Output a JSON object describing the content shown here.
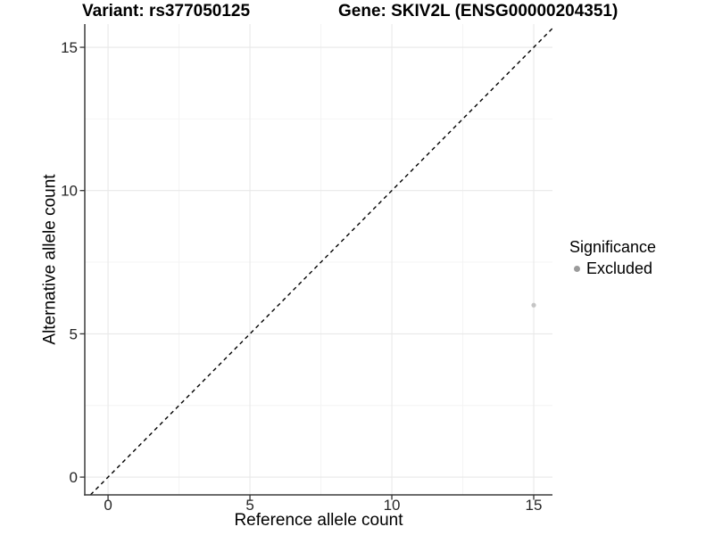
{
  "chart_data": {
    "type": "scatter",
    "title_left": "Variant: rs377050125",
    "title_right": "Gene: SKIV2L (ENSG00000204351)",
    "xlabel": "Reference allele count",
    "ylabel": "Alternative allele count",
    "xlim": [
      -0.82,
      15.66
    ],
    "ylim": [
      -0.62,
      15.81
    ],
    "x_ticks": [
      0,
      5,
      10,
      15
    ],
    "x_tick_labels": [
      "0",
      "5",
      "10",
      "15"
    ],
    "y_ticks": [
      0,
      5,
      10,
      15
    ],
    "y_tick_labels": [
      "0",
      "5",
      "10",
      "15"
    ],
    "x_minor": [
      2.5,
      7.5,
      12.5
    ],
    "y_minor": [
      2.5,
      7.5,
      12.5
    ],
    "grid": "major+minor",
    "identity_line": {
      "slope": 1,
      "intercept": 0,
      "style": "dashed",
      "color": "#000000"
    },
    "points": [
      {
        "x": 15,
        "y": 6,
        "series": "Excluded",
        "color": "#c5c5c5"
      }
    ],
    "legend": {
      "title": "Significance",
      "position": "right",
      "entries": [
        {
          "label": "Excluded",
          "color": "#9b9b9b"
        }
      ]
    }
  }
}
